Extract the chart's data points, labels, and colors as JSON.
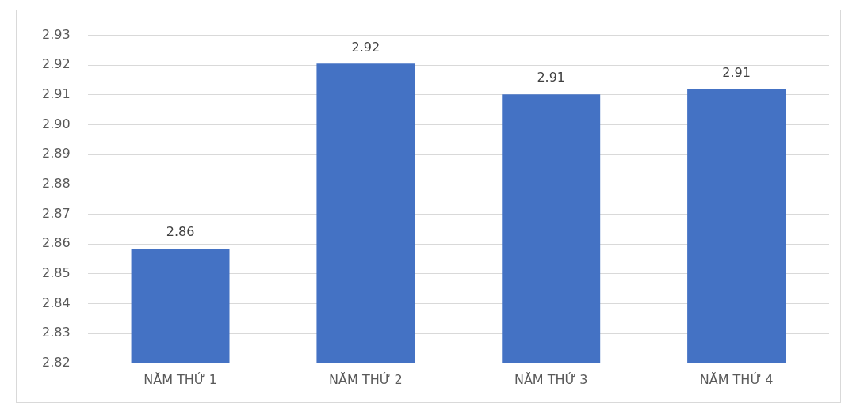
{
  "chart_data": {
    "type": "bar",
    "categories": [
      "NĂM THỨ 1",
      "NĂM THỨ 2",
      "NĂM THỨ 3",
      "NĂM THỨ 4"
    ],
    "values": [
      2.8584,
      2.9205,
      2.9102,
      2.912
    ],
    "value_labels": [
      "2.86",
      "2.92",
      "2.91",
      "2.91"
    ],
    "color": "#4472c4",
    "ylim": [
      2.82,
      2.93
    ],
    "yticks": [
      "2.82",
      "2.83",
      "2.84",
      "2.85",
      "2.86",
      "2.87",
      "2.88",
      "2.89",
      "2.90",
      "2.91",
      "2.92",
      "2.93"
    ],
    "grid": "y"
  }
}
